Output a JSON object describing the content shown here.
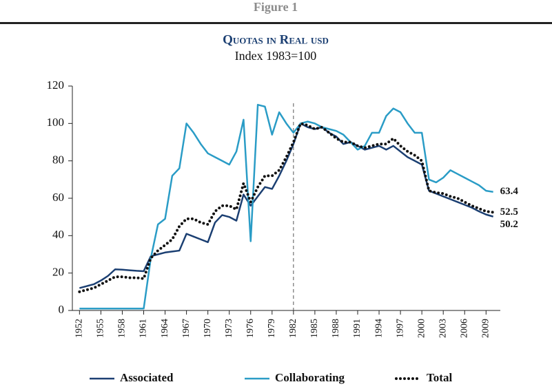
{
  "chart_data": {
    "type": "line",
    "figure_label": "Figure 1",
    "title": "Quotas in Real usd",
    "subtitle": "Index 1983=100",
    "x": [
      1952,
      1953,
      1954,
      1955,
      1956,
      1957,
      1958,
      1959,
      1960,
      1961,
      1962,
      1963,
      1964,
      1965,
      1966,
      1967,
      1968,
      1969,
      1970,
      1971,
      1972,
      1973,
      1974,
      1975,
      1976,
      1977,
      1978,
      1979,
      1980,
      1981,
      1982,
      1983,
      1984,
      1985,
      1986,
      1987,
      1988,
      1989,
      1990,
      1991,
      1992,
      1993,
      1994,
      1995,
      1996,
      1997,
      1998,
      1999,
      2000,
      2001,
      2002,
      2003,
      2004,
      2005,
      2006,
      2007,
      2008,
      2009,
      2010
    ],
    "series": [
      {
        "name": "Associated",
        "color": "#1b3f72",
        "style": "solid",
        "values": [
          12,
          13,
          14,
          16,
          18.5,
          22,
          21.8,
          21.5,
          21.2,
          21,
          29,
          30,
          31,
          31.5,
          32,
          41,
          39.5,
          38,
          36.5,
          47,
          51,
          50,
          48,
          62,
          56,
          61,
          66,
          65,
          72,
          80,
          89,
          100,
          98,
          97,
          98,
          95,
          93,
          89,
          90,
          88,
          86,
          87,
          88,
          86,
          88,
          85,
          82,
          80,
          78,
          64,
          62.5,
          61,
          59.5,
          58,
          56.5,
          55,
          53,
          51.3,
          50.2
        ]
      },
      {
        "name": "Collaborating",
        "color": "#2a9cc6",
        "style": "solid",
        "values": [
          1,
          1,
          1,
          1,
          1,
          1,
          1,
          1,
          1,
          1,
          28,
          46,
          49,
          72,
          76,
          100,
          95,
          89,
          84,
          82,
          80,
          78,
          85,
          102,
          37,
          110,
          109,
          94,
          106,
          100,
          95,
          100,
          101,
          100,
          98,
          97,
          96,
          94,
          90,
          86,
          88,
          95,
          95,
          104,
          108,
          106,
          100,
          95,
          95,
          70,
          68.5,
          71,
          75,
          73,
          71,
          69,
          67,
          64,
          63.4
        ]
      },
      {
        "name": "Total",
        "color": "#111111",
        "style": "dotted",
        "values": [
          10,
          11,
          12,
          14,
          16,
          18,
          18,
          17.5,
          17.5,
          17,
          28,
          32,
          35,
          38,
          45,
          49,
          49,
          47,
          46,
          53,
          56,
          56,
          54,
          68,
          58,
          66,
          72,
          72,
          75,
          82,
          90,
          100,
          99,
          97,
          98,
          95,
          92,
          90,
          90,
          88,
          87,
          88,
          89,
          89,
          92,
          88,
          85,
          83,
          80,
          64,
          63,
          62.5,
          61,
          60,
          58,
          56,
          54.5,
          53,
          52.5
        ]
      }
    ],
    "xlim": [
      1951,
      2011
    ],
    "xticks": [
      1952,
      1955,
      1958,
      1961,
      1964,
      1967,
      1970,
      1973,
      1976,
      1979,
      1982,
      1985,
      1988,
      1991,
      1994,
      1997,
      2000,
      2003,
      2006,
      2009
    ],
    "ylim": [
      0,
      120
    ],
    "yticks": [
      0,
      20,
      40,
      60,
      80,
      100,
      120
    ],
    "vline_x": 1982,
    "legend": "bottom"
  }
}
